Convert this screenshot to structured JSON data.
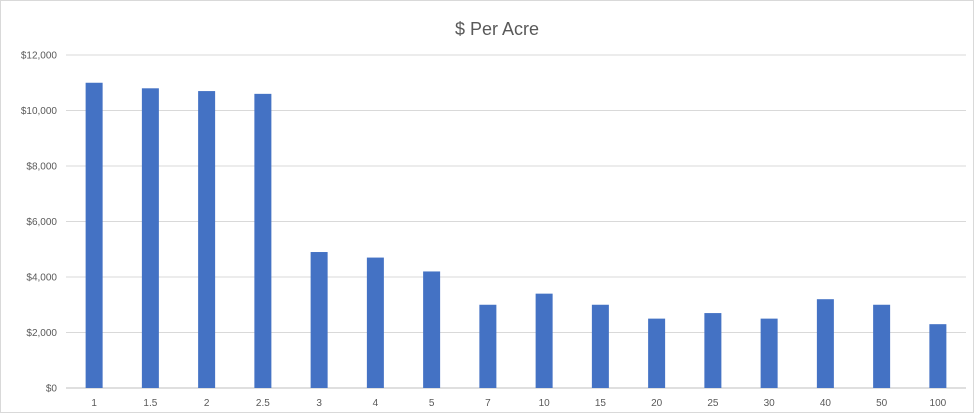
{
  "chart_data": {
    "type": "bar",
    "title": "$ Per Acre",
    "xlabel": "",
    "ylabel": "",
    "categories": [
      "1",
      "1.5",
      "2",
      "2.5",
      "3",
      "4",
      "5",
      "7",
      "10",
      "15",
      "20",
      "25",
      "30",
      "40",
      "50",
      "100"
    ],
    "values": [
      11000,
      10800,
      10700,
      10600,
      4900,
      4700,
      4200,
      3000,
      3400,
      3000,
      2500,
      2700,
      2500,
      3200,
      3000,
      2300
    ],
    "ylim": [
      0,
      12000
    ],
    "yticks": [
      0,
      2000,
      4000,
      6000,
      8000,
      10000,
      12000
    ],
    "ytick_labels": [
      "$0",
      "$2,000",
      "$4,000",
      "$6,000",
      "$8,000",
      "$10,000",
      "$12,000"
    ],
    "grid": true,
    "legend": "none",
    "bar_color": "#4472c4"
  }
}
